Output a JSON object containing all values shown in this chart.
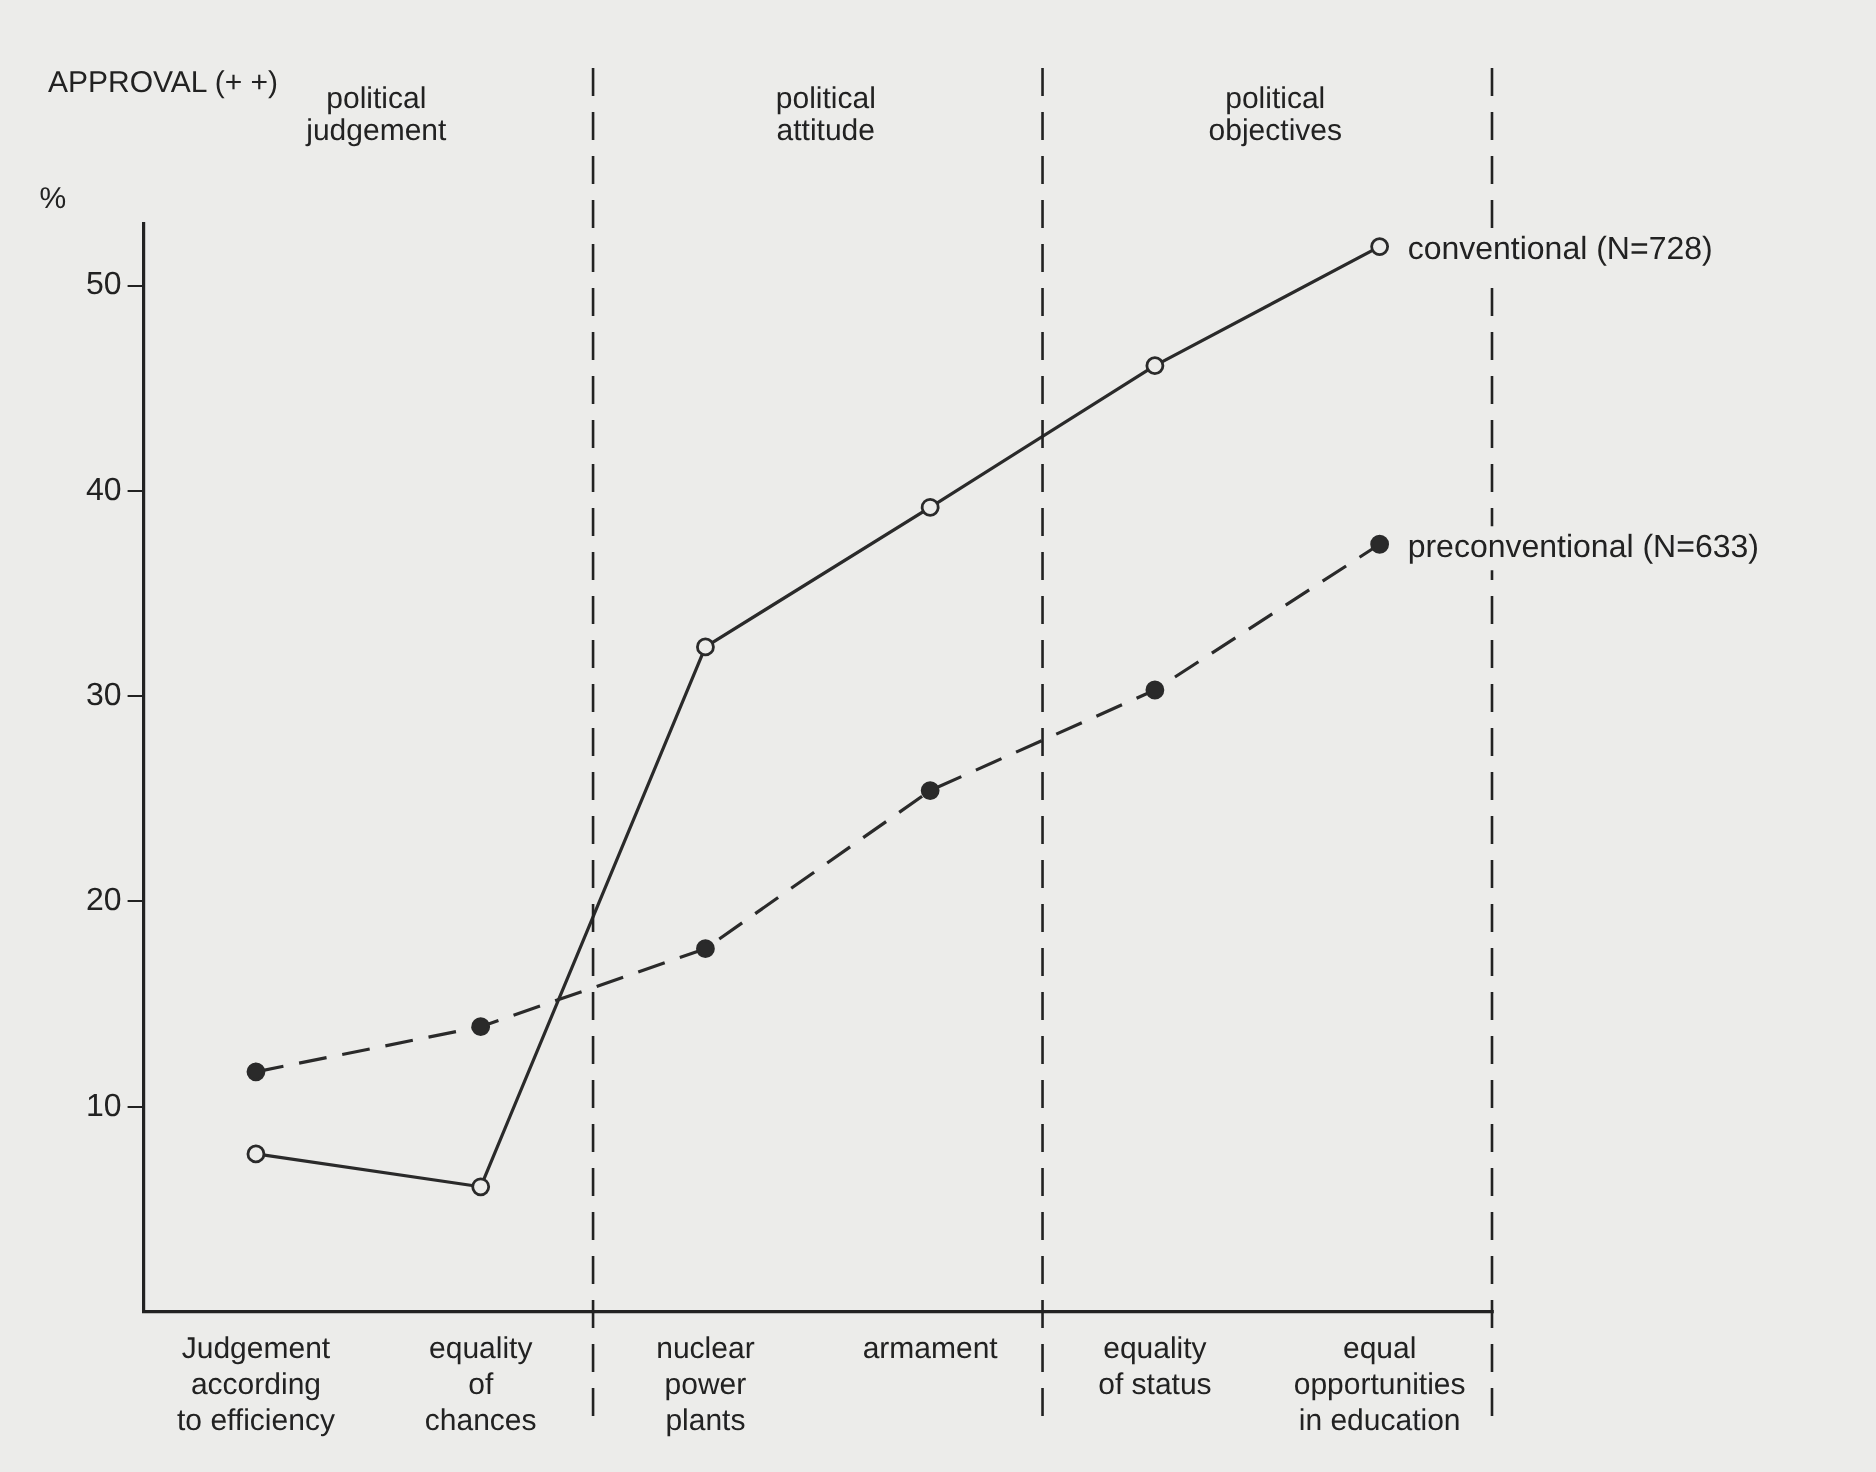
{
  "chart_data": {
    "type": "line",
    "title": "APPROVAL (+ +)",
    "ylabel": "%",
    "categories": [
      "Judgement\naccording\nto efficiency",
      "equality\nof\nchances",
      "nuclear\npower\nplants",
      "armament",
      "equality\nof status",
      "equal\nopportunities\nin education"
    ],
    "series": [
      {
        "name": "conventional (N=728)",
        "color": "#2a2a2a",
        "line_style": "solid",
        "values": [
          7.7,
          6.1,
          32.4,
          39.2,
          46.1,
          51.9
        ]
      },
      {
        "name": "preconventional (N=633)",
        "color": "#2a2a2a",
        "line_style": "dashed",
        "values": [
          11.7,
          13.9,
          17.7,
          25.4,
          30.3,
          37.4
        ]
      }
    ],
    "ylim": [
      0,
      53
    ],
    "yticks": [
      10,
      20,
      30,
      40,
      50
    ],
    "grid": false,
    "legend": false,
    "marker": "circle",
    "annotations": [
      "political\njudgement",
      "political\nattitude",
      "political\nobjectives"
    ]
  }
}
